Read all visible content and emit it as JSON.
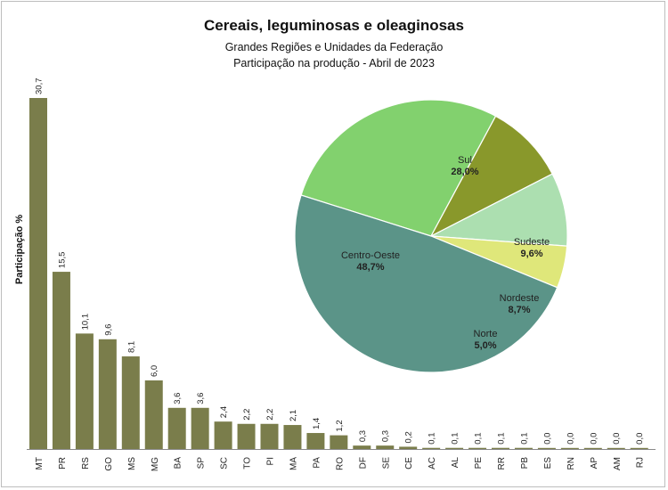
{
  "chart_data": [
    {
      "type": "bar",
      "title": "Cereais, leguminosas e oleaginosas",
      "subtitle": [
        "Grandes Regiões e Unidades da Federação",
        "Participação na produção - Abril de 2023"
      ],
      "ylabel": "Participação %",
      "ylim": [
        0,
        30.7
      ],
      "color": "#7a7d4b",
      "categories": [
        "MT",
        "PR",
        "RS",
        "GO",
        "MS",
        "MG",
        "BA",
        "SP",
        "SC",
        "TO",
        "PI",
        "MA",
        "PA",
        "RO",
        "DF",
        "SE",
        "CE",
        "AC",
        "AL",
        "PE",
        "RR",
        "PB",
        "ES",
        "RN",
        "AP",
        "AM",
        "RJ"
      ],
      "values": [
        30.7,
        15.5,
        10.1,
        9.6,
        8.1,
        6.0,
        3.6,
        3.6,
        2.4,
        2.2,
        2.2,
        2.1,
        1.4,
        1.2,
        0.3,
        0.3,
        0.2,
        0.1,
        0.1,
        0.1,
        0.1,
        0.1,
        0.0,
        0.0,
        0.0,
        0.0,
        0.0
      ],
      "value_labels": [
        "30,7",
        "15,5",
        "10,1",
        "9,6",
        "8,1",
        "6,0",
        "3,6",
        "3,6",
        "2,4",
        "2,2",
        "2,2",
        "2,1",
        "1,4",
        "1,2",
        "0,3",
        "0,3",
        "0,2",
        "0,1",
        "0,1",
        "0,1",
        "0,1",
        "0,1",
        "0,0",
        "0,0",
        "0,0",
        "0,0",
        "0,0"
      ]
    },
    {
      "type": "pie",
      "slices": [
        {
          "label": "Sul",
          "value": 28.0,
          "value_label": "28,0%",
          "color": "#82d16e"
        },
        {
          "label": "Sudeste",
          "value": 9.6,
          "value_label": "9,6%",
          "color": "#89982b"
        },
        {
          "label": "Nordeste",
          "value": 8.7,
          "value_label": "8,7%",
          "color": "#acdfb0"
        },
        {
          "label": "Norte",
          "value": 5.0,
          "value_label": "5,0%",
          "color": "#dfe77a"
        },
        {
          "label": "Centro-Oeste",
          "value": 48.7,
          "value_label": "48,7%",
          "color": "#5b9488"
        }
      ]
    }
  ]
}
